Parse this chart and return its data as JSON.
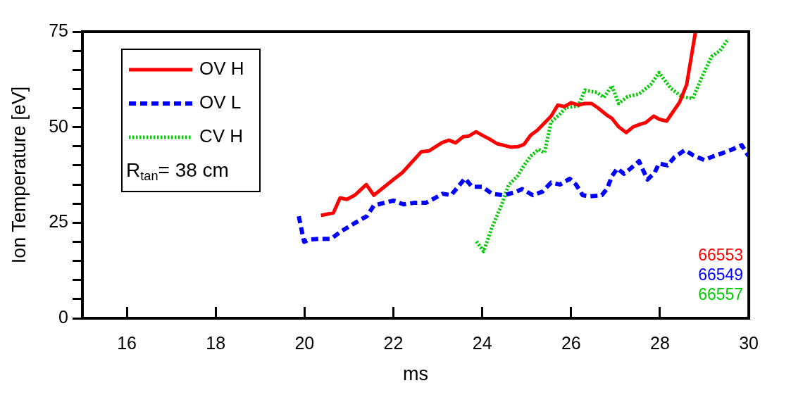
{
  "chart_data": {
    "type": "line",
    "xlabel": "ms",
    "ylabel": "Ion Temperature [eV]",
    "xlim": [
      15,
      30
    ],
    "xticks": [
      16,
      18,
      20,
      22,
      24,
      26,
      28,
      30
    ],
    "ylim": [
      0,
      75
    ],
    "yticks": [
      0,
      {
        "value": 5,
        "label": null
      },
      {
        "value": 10,
        "label": null
      },
      {
        "value": 15,
        "label": null
      },
      {
        "value": 20,
        "label": null
      },
      25,
      {
        "value": 30,
        "label": null
      },
      {
        "value": 35,
        "label": null
      },
      {
        "value": 40,
        "label": null
      },
      {
        "value": 45,
        "label": null
      },
      50,
      {
        "value": 55,
        "label": null
      },
      {
        "value": 60,
        "label": null
      },
      {
        "value": 65,
        "label": null
      },
      {
        "value": 70,
        "label": null
      },
      75
    ],
    "legend": "top left",
    "marker": "none",
    "annotations": [
      "R$_{tan}$= 38 cm",
      "66553",
      "66549",
      "66557"
    ],
    "series": [
      {
        "name": "OV H",
        "color": "#ff0000",
        "line_style": "solid",
        "x": [
          20.37,
          20.65,
          20.8,
          20.95,
          21.13,
          21.39,
          21.56,
          22.0,
          22.2,
          22.63,
          22.8,
          23.1,
          23.25,
          23.4,
          23.57,
          23.7,
          23.86,
          24.03,
          24.18,
          24.33,
          24.64,
          24.8,
          24.94,
          25.09,
          25.24,
          25.55,
          25.7,
          25.85,
          26.0,
          26.16,
          26.31,
          26.46,
          26.6,
          26.8,
          26.92,
          27.07,
          27.24,
          27.4,
          27.56,
          27.68,
          27.86,
          27.98,
          28.15,
          28.44,
          28.6,
          28.8
        ],
        "values": [
          26.9,
          27.6,
          31.5,
          31.1,
          32.2,
          35.0,
          32.2,
          36.3,
          38.1,
          43.6,
          43.8,
          46.0,
          46.6,
          45.9,
          47.5,
          47.7,
          48.8,
          47.7,
          46.8,
          45.7,
          44.8,
          44.9,
          45.5,
          47.9,
          49.2,
          52.9,
          55.8,
          55.4,
          56.4,
          55.8,
          56.2,
          56.2,
          55.1,
          53.2,
          52.3,
          50.1,
          48.6,
          50.1,
          50.8,
          51.2,
          52.9,
          52.1,
          51.6,
          56.5,
          61.1,
          75
        ]
      },
      {
        "name": "OV L",
        "color": "#0000ff",
        "line_style": "dashed",
        "x": [
          19.87,
          19.99,
          20.11,
          20.33,
          20.6,
          20.83,
          21.13,
          21.4,
          21.56,
          21.79,
          22.0,
          22.23,
          22.46,
          22.73,
          22.91,
          23.11,
          23.3,
          23.61,
          23.77,
          24.0,
          24.22,
          24.48,
          24.74,
          24.9,
          25.14,
          25.35,
          25.55,
          25.75,
          25.97,
          26.11,
          26.26,
          26.43,
          26.69,
          26.81,
          26.92,
          27.04,
          27.19,
          27.34,
          27.53,
          27.63,
          27.72,
          27.88,
          27.98,
          28.17,
          28.33,
          28.56,
          28.74,
          29.0,
          29.16,
          29.38,
          29.63,
          29.84,
          29.99
        ],
        "values": [
          26.7,
          20.0,
          20.6,
          20.8,
          20.8,
          22.8,
          24.9,
          26.7,
          29.5,
          30.2,
          30.8,
          29.8,
          30.2,
          30.2,
          31.3,
          32.6,
          32.2,
          36.6,
          34.4,
          34.4,
          32.6,
          32.2,
          33.0,
          33.8,
          32.2,
          33.1,
          35.5,
          35.0,
          36.5,
          35.0,
          32.2,
          31.9,
          32.2,
          33.9,
          37.2,
          39.2,
          37.8,
          39.2,
          41.1,
          38.5,
          36.3,
          38.1,
          40.5,
          40.0,
          42.2,
          44.0,
          42.7,
          41.4,
          42.2,
          43.1,
          44.2,
          45.3,
          42.5
        ]
      },
      {
        "name": "CV H",
        "color": "#00cc00",
        "line_style": "dotted",
        "x": [
          23.87,
          24.03,
          24.22,
          24.44,
          24.59,
          24.79,
          24.97,
          25.09,
          25.27,
          25.4,
          25.55,
          25.73,
          25.88,
          26.16,
          26.31,
          26.58,
          26.74,
          26.92,
          27.07,
          27.27,
          27.53,
          27.79,
          27.98,
          28.24,
          28.49,
          28.74,
          28.94,
          29.16,
          29.35,
          29.54
        ],
        "values": [
          20.1,
          17.5,
          23.8,
          29.8,
          34.8,
          37.2,
          40.5,
          42.4,
          44.2,
          43.3,
          51.4,
          53.2,
          55.1,
          55.6,
          59.7,
          59.1,
          57.8,
          60.8,
          56.2,
          58.0,
          58.7,
          61.1,
          64.3,
          60.2,
          58.0,
          57.5,
          63.0,
          68.5,
          70.0,
          73.1
        ]
      }
    ]
  }
}
